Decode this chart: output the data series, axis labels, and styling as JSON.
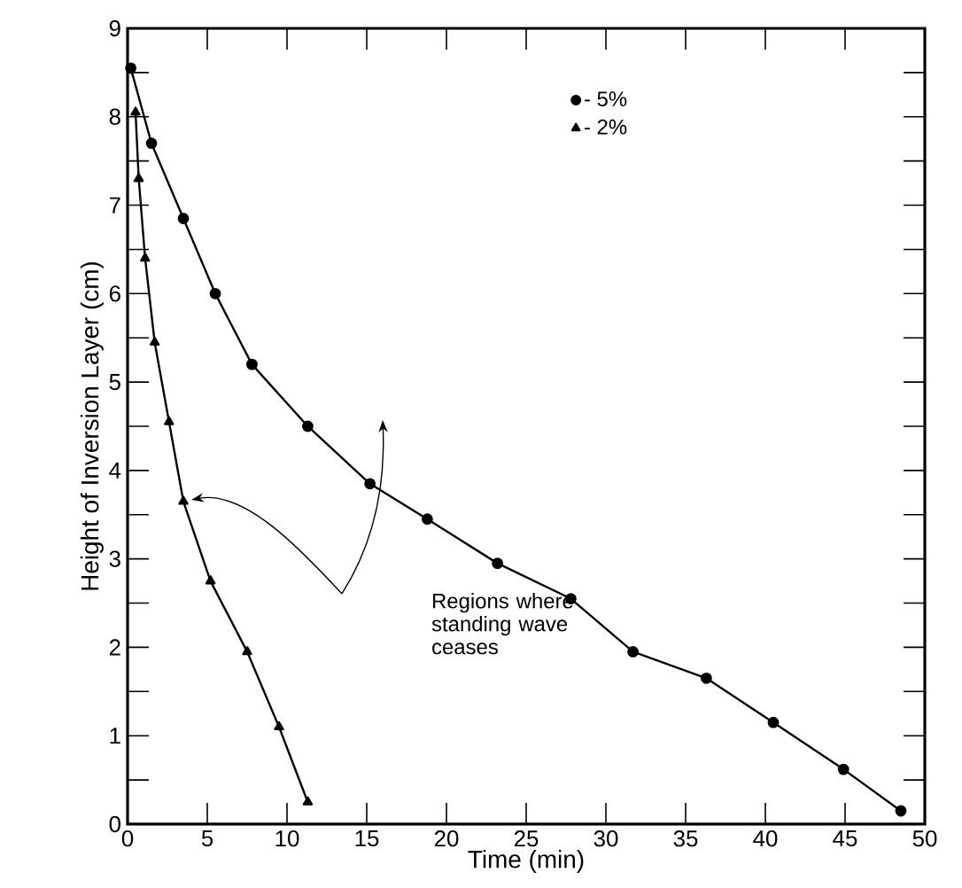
{
  "chart_data": {
    "type": "line",
    "xlabel": "Time  (min)",
    "ylabel": "Height of Inversion Layer (cm)",
    "xlim": [
      0,
      50
    ],
    "ylim": [
      0,
      9
    ],
    "xticks": [
      0,
      5,
      10,
      15,
      20,
      25,
      30,
      35,
      40,
      45,
      50
    ],
    "yticks": [
      0,
      1,
      2,
      3,
      4,
      5,
      6,
      7,
      8,
      9
    ],
    "legend": "top right",
    "grid": false,
    "series": [
      {
        "name": "- 5%",
        "color": "#000000",
        "marker": "circle",
        "x": [
          0.2,
          1.5,
          3.5,
          5.5,
          7.8,
          11.3,
          15.2,
          18.8,
          23.2,
          27.8,
          31.7,
          36.3,
          40.5,
          44.9,
          48.5
        ],
        "values": [
          8.55,
          7.7,
          6.85,
          6.0,
          5.2,
          4.5,
          3.85,
          3.45,
          2.95,
          2.55,
          1.95,
          1.65,
          1.15,
          0.62,
          0.15
        ]
      },
      {
        "name": "- 2%",
        "color": "#000000",
        "marker": "triangle",
        "x": [
          0.5,
          0.7,
          1.1,
          1.7,
          2.6,
          3.5,
          5.2,
          7.5,
          9.5,
          11.3
        ],
        "values": [
          8.05,
          7.3,
          6.4,
          5.45,
          4.55,
          3.65,
          2.75,
          1.95,
          1.1,
          0.25
        ]
      }
    ],
    "annotations": [
      "Regions where standing wave ceases"
    ]
  }
}
